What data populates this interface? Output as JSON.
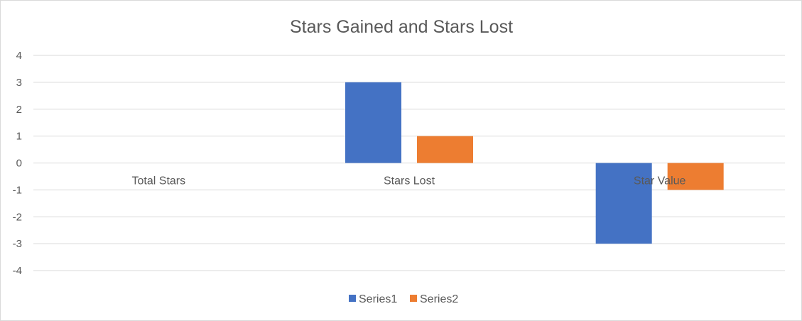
{
  "chart_data": {
    "type": "bar",
    "title": "Stars Gained and Stars Lost",
    "categories": [
      "Total Stars",
      "Stars Lost",
      "Star Value"
    ],
    "series": [
      {
        "name": "Series1",
        "color": "#4472c4",
        "values": [
          0,
          3,
          -3
        ]
      },
      {
        "name": "Series2",
        "color": "#ed7d31",
        "values": [
          0,
          1,
          -1
        ]
      }
    ],
    "y_ticks": [
      4,
      3,
      2,
      1,
      0,
      -1,
      -2,
      -3,
      -4
    ],
    "ylim": [
      -4,
      4
    ],
    "grid": true,
    "legend_position": "bottom"
  }
}
